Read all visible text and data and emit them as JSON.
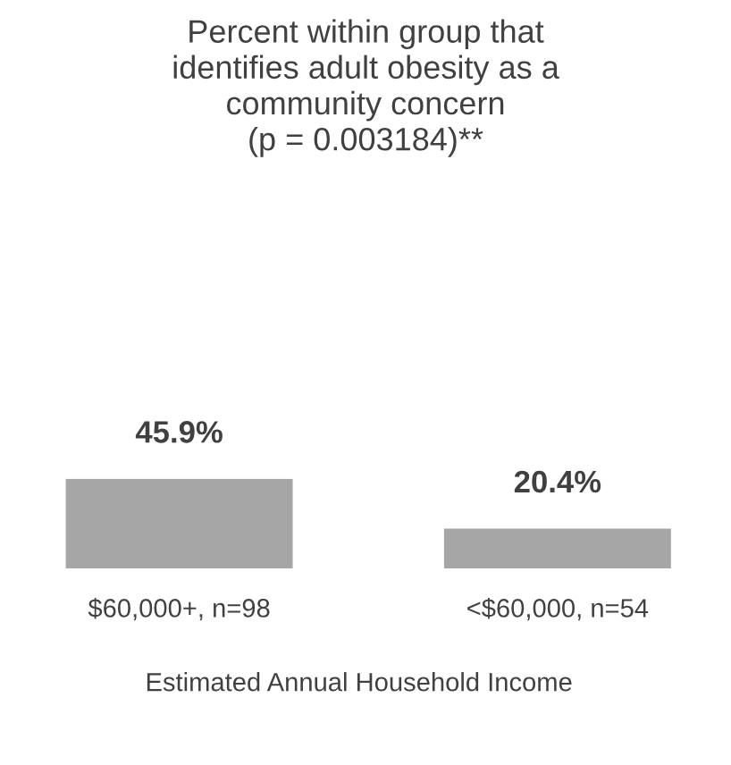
{
  "chart_data": {
    "type": "bar",
    "title": "Percent within group that\nidentifies adult obesity as a\ncommunity concern\n(p = 0.003184)**",
    "categories": [
      "$60,000+, n=98",
      "<$60,000, n=54"
    ],
    "values": [
      45.9,
      20.4
    ],
    "color": "#a6a6a6",
    "value_labels": [
      "45.9%",
      "20.4%"
    ],
    "xlabel": "Estimated Annual Household Income",
    "grid": false,
    "legend": false
  }
}
